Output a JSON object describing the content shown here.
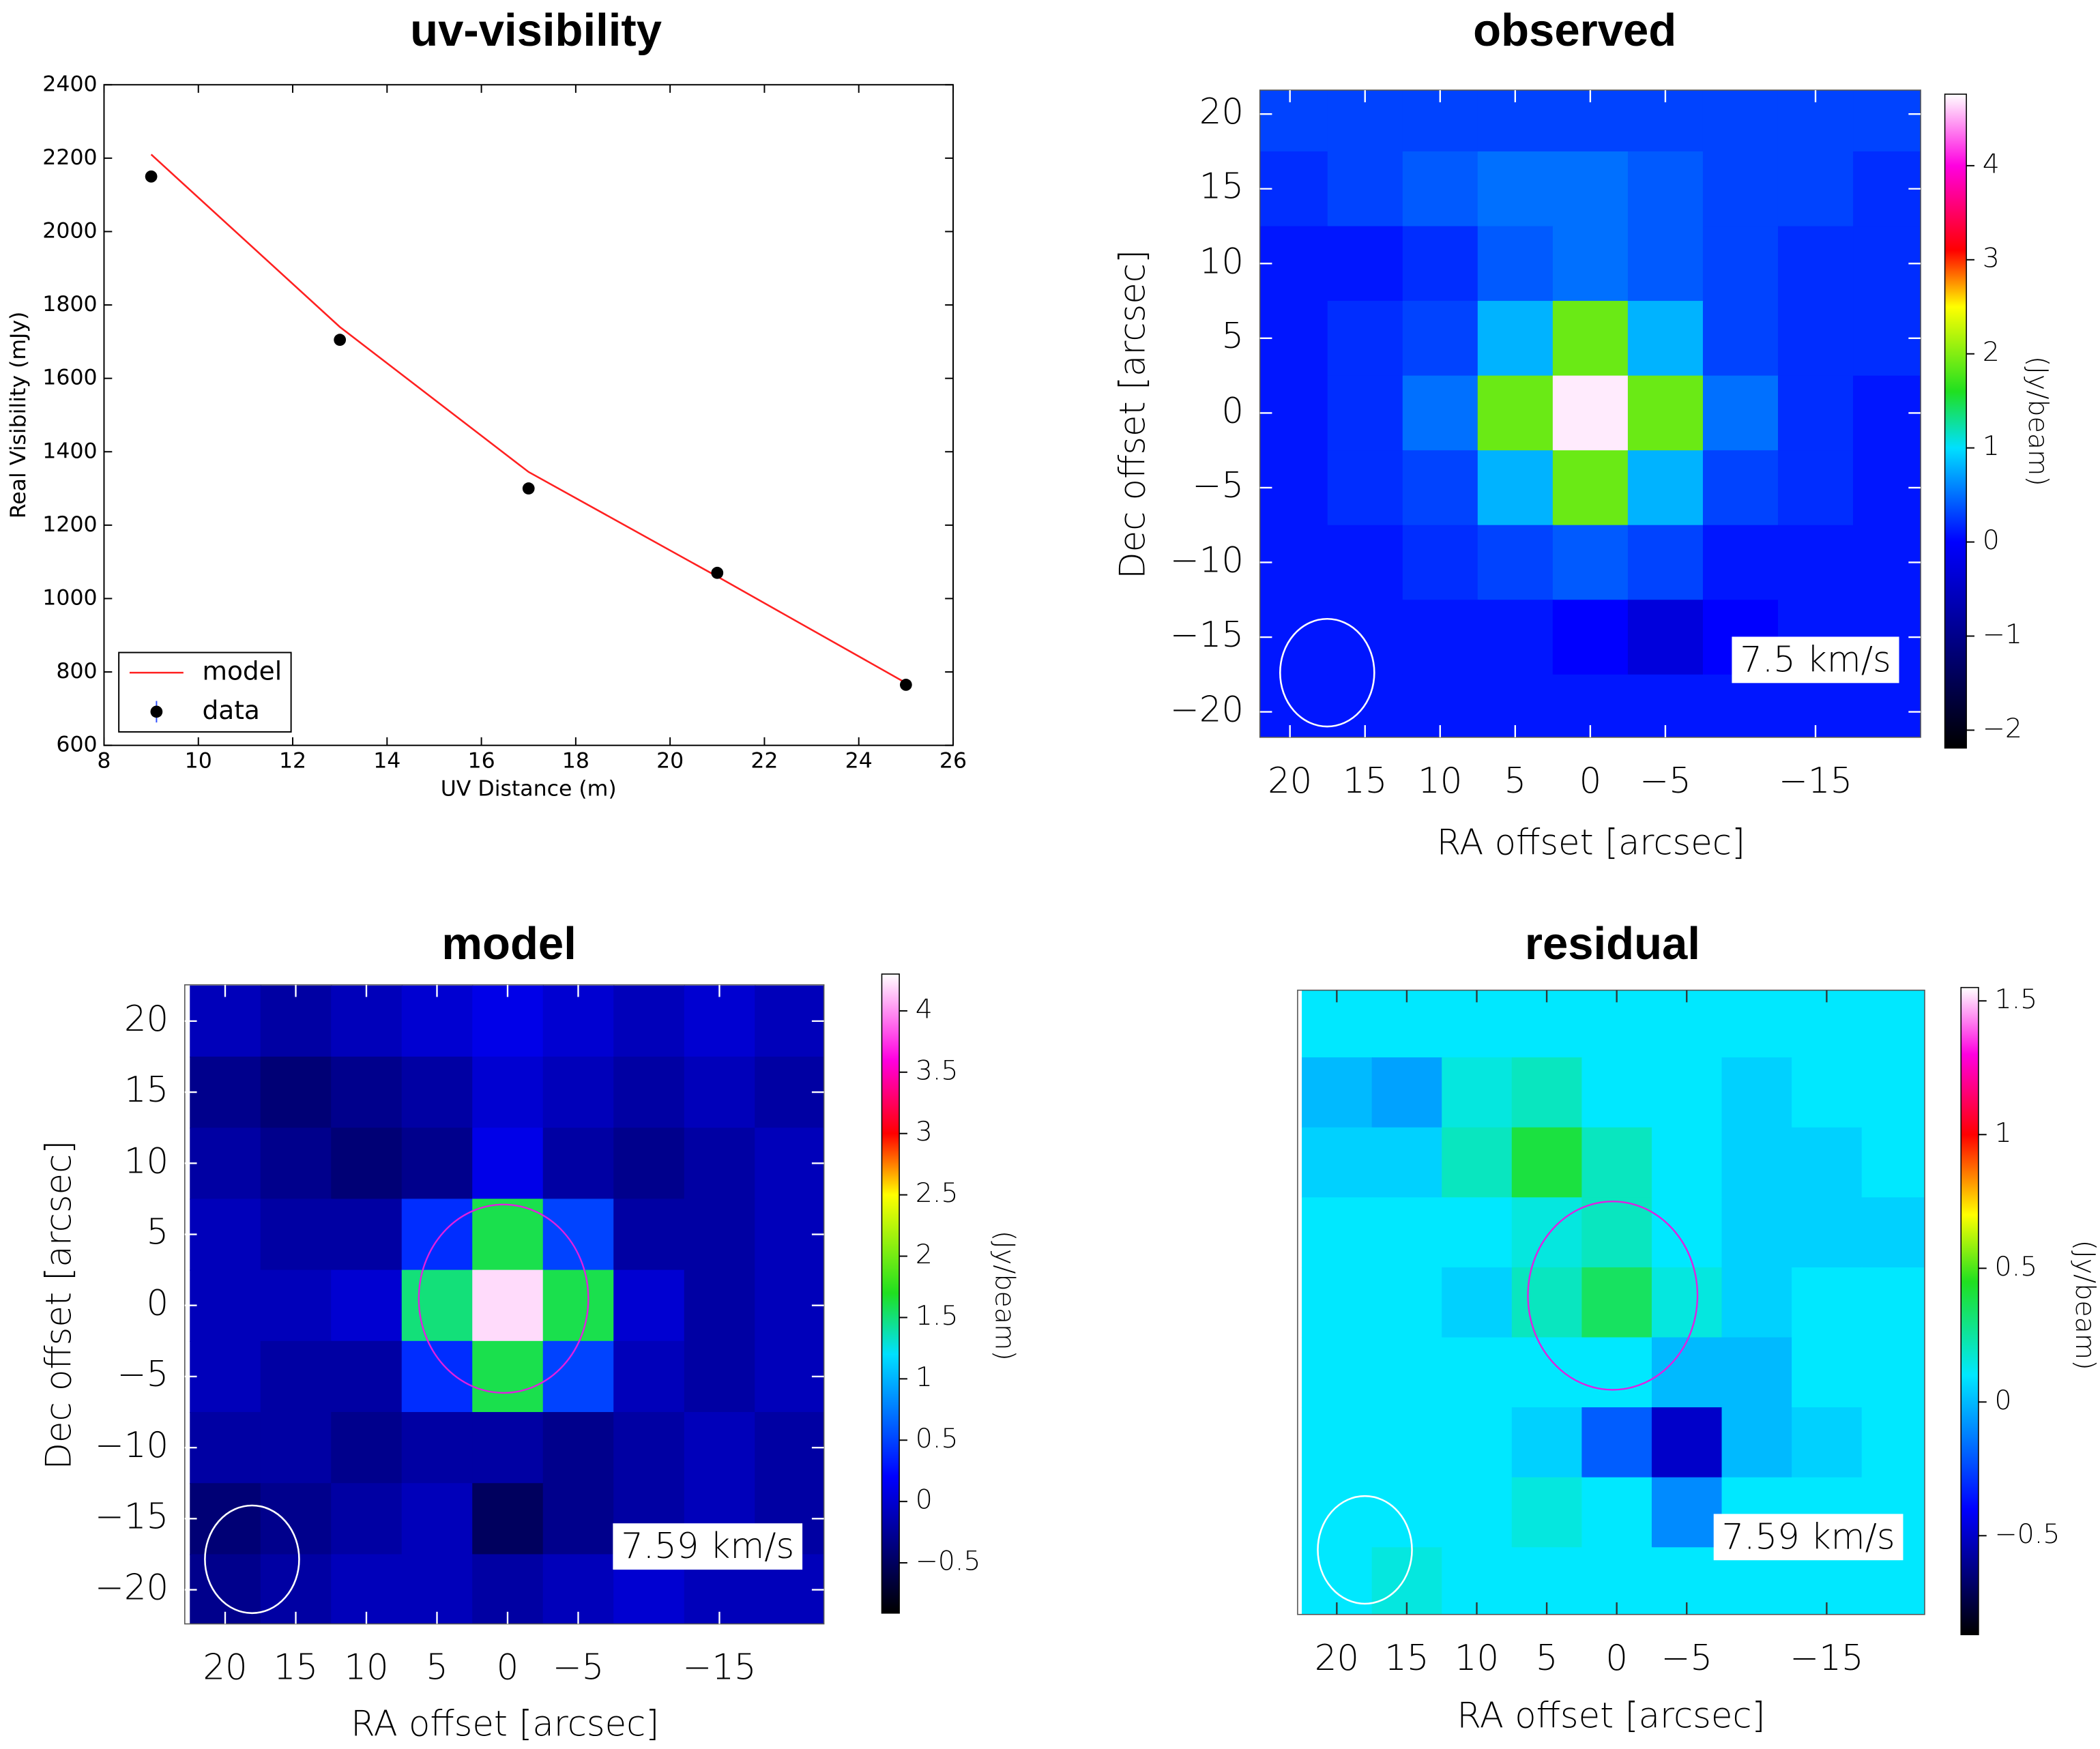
{
  "chart_data": [
    {
      "type": "line",
      "title": "uv-visibility",
      "xlabel": "UV Distance (m)",
      "ylabel": "Real Visibility (mJy)",
      "x": [
        9,
        13,
        17,
        21,
        25
      ],
      "series": [
        {
          "name": "model",
          "color": "#ff2020",
          "values": [
            2210,
            1740,
            1345,
            1060,
            770
          ]
        },
        {
          "name": "data",
          "color": "#000000",
          "error_color": "#3050ff",
          "values": [
            2150,
            1705,
            1300,
            1070,
            765
          ],
          "errors": [
            10,
            10,
            10,
            10,
            10
          ]
        }
      ],
      "xlim": [
        8,
        26
      ],
      "xticks": [
        8,
        10,
        12,
        14,
        16,
        18,
        20,
        22,
        24,
        26
      ],
      "ylim": [
        600,
        2400
      ],
      "yticks": [
        600,
        800,
        1000,
        1200,
        1400,
        1600,
        1800,
        2000,
        2200,
        2400
      ],
      "legend": "lower left"
    },
    {
      "type": "heatmap",
      "title": "observed",
      "xlabel": "RA offset [arcsec]",
      "ylabel": "Dec offset [arcsec]",
      "colorbar_label": "(Jy/beam)",
      "annotation": "7.5 km/s",
      "x": [
        20,
        15,
        10,
        5,
        0,
        -5,
        -10,
        -15,
        -20
      ],
      "y": [
        20,
        15,
        10,
        5,
        0,
        -5,
        -10,
        -15,
        -20
      ],
      "values": [
        [
          0.3,
          0.3,
          0.3,
          0.3,
          0.3,
          0.3,
          0.3,
          0.3,
          0.3
        ],
        [
          0.2,
          0.3,
          0.4,
          0.5,
          0.5,
          0.4,
          0.3,
          0.3,
          0.2
        ],
        [
          0.1,
          0.1,
          0.2,
          0.4,
          0.5,
          0.4,
          0.3,
          0.2,
          0.2
        ],
        [
          0.1,
          0.2,
          0.3,
          0.8,
          1.9,
          0.8,
          0.3,
          0.2,
          0.2
        ],
        [
          0.1,
          0.2,
          0.5,
          1.9,
          4.7,
          1.9,
          0.5,
          0.2,
          0.1
        ],
        [
          0.1,
          0.2,
          0.3,
          0.8,
          1.9,
          0.8,
          0.3,
          0.2,
          0.1
        ],
        [
          0.1,
          0.1,
          0.2,
          0.3,
          0.4,
          0.3,
          0.1,
          0.1,
          0.1
        ],
        [
          0.1,
          0.1,
          0.1,
          0.1,
          0,
          -0.3,
          0,
          0.1,
          0.1
        ],
        [
          0.1,
          0.1,
          0.1,
          0.1,
          0.1,
          0.1,
          0.1,
          0.1,
          0.1
        ]
      ],
      "xlim": [
        22,
        -22
      ],
      "ylim": [
        -21.7,
        21.6
      ],
      "xticks": [
        20,
        15,
        10,
        5,
        0,
        {
          "value": -5,
          "label": "−5"
        },
        {
          "value": -15,
          "label": "−15"
        }
      ],
      "yticks": [
        20,
        15,
        10,
        5,
        0,
        {
          "value": -5,
          "label": "−5"
        },
        {
          "value": -10,
          "label": "−10"
        },
        {
          "value": -15,
          "label": "−15"
        },
        {
          "value": -20,
          "label": "−20"
        }
      ],
      "clim": [
        -2.19,
        4.76
      ],
      "cticks": [
        4,
        3,
        2,
        1,
        0,
        {
          "value": -1,
          "label": "−1"
        },
        {
          "value": -2,
          "label": "−2"
        }
      ],
      "colormap": [
        {
          "value": -2.19,
          "color": "#000000"
        },
        {
          "value": 0,
          "color": "#0000ff"
        },
        {
          "value": 1,
          "color": "#00e0ff"
        },
        {
          "value": 1.6,
          "color": "#20e020"
        },
        {
          "value": 2.5,
          "color": "#ffff00"
        },
        {
          "value": 3.1,
          "color": "#ff0000"
        },
        {
          "value": 4,
          "color": "#ff00e0"
        },
        {
          "value": 4.76,
          "color": "#ffffff"
        }
      ]
    },
    {
      "type": "heatmap",
      "title": "model",
      "xlabel": "RA offset [arcsec]",
      "ylabel": "Dec offset [arcsec]",
      "colorbar_label": "(Jy/beam)",
      "annotation": "7.59 km/s",
      "x": [
        20,
        15,
        10,
        5,
        0,
        -5,
        -10,
        -15,
        -20
      ],
      "y": [
        20,
        15,
        10,
        5,
        0,
        -5,
        -10,
        -15,
        -20
      ],
      "values": [
        [
          -0.1,
          -0.2,
          -0.1,
          0,
          0.1,
          0,
          -0.1,
          0,
          -0.1
        ],
        [
          -0.3,
          -0.4,
          -0.3,
          -0.2,
          0,
          -0.1,
          -0.2,
          -0.1,
          -0.2
        ],
        [
          -0.2,
          -0.3,
          -0.4,
          -0.3,
          0.1,
          -0.2,
          -0.3,
          -0.2,
          -0.1
        ],
        [
          -0.1,
          -0.2,
          -0.2,
          0.4,
          1.6,
          0.5,
          -0.2,
          -0.2,
          -0.1
        ],
        [
          -0.1,
          -0.1,
          0,
          1.5,
          4.2,
          1.6,
          0,
          -0.2,
          -0.1
        ],
        [
          -0.1,
          -0.2,
          -0.2,
          0.4,
          1.6,
          0.5,
          -0.1,
          -0.2,
          -0.1
        ],
        [
          -0.2,
          -0.2,
          -0.3,
          -0.2,
          -0.2,
          -0.3,
          -0.2,
          -0.1,
          -0.2
        ],
        [
          -0.4,
          -0.3,
          -0.2,
          -0.1,
          -0.5,
          -0.3,
          -0.2,
          -0.1,
          -0.2
        ],
        [
          -0.3,
          -0.2,
          -0.1,
          -0.1,
          -0.2,
          -0.1,
          0,
          -0.1,
          -0.1
        ]
      ],
      "xlim": [
        22.86,
        -22.4
      ],
      "ylim": [
        -22.4,
        22.55
      ],
      "xticks": [
        20,
        15,
        10,
        5,
        0,
        {
          "value": -5,
          "label": "−5"
        },
        {
          "value": -15,
          "label": "−15"
        }
      ],
      "yticks": [
        20,
        15,
        10,
        5,
        0,
        {
          "value": -5,
          "label": "−5"
        },
        {
          "value": -10,
          "label": "−10"
        },
        {
          "value": -15,
          "label": "−15"
        },
        {
          "value": -20,
          "label": "−20"
        }
      ],
      "clim": [
        -0.91,
        4.3
      ],
      "cticks": [
        4,
        3.5,
        3,
        2.5,
        2,
        1.5,
        1,
        0.5,
        0,
        {
          "value": -0.5,
          "label": "−0.5"
        }
      ],
      "colormap": [
        {
          "value": -0.91,
          "color": "#000000"
        },
        {
          "value": 0.2,
          "color": "#0000ff"
        },
        {
          "value": 1.2,
          "color": "#00e0ff"
        },
        {
          "value": 1.7,
          "color": "#20e020"
        },
        {
          "value": 2.5,
          "color": "#ffff00"
        },
        {
          "value": 3,
          "color": "#ff0000"
        },
        {
          "value": 3.6,
          "color": "#ff00e0"
        },
        {
          "value": 4.3,
          "color": "#ffffff"
        }
      ]
    },
    {
      "type": "heatmap",
      "title": "residual",
      "xlabel": "RA offset [arcsec]",
      "colorbar_label": "(Jy/beam)",
      "annotation": "7.59 km/s",
      "x": [
        20,
        15,
        10,
        5,
        0,
        -5,
        -10,
        -15,
        -20
      ],
      "y": [
        20,
        15,
        10,
        5,
        0,
        -5,
        -10,
        -15,
        -20
      ],
      "values": [
        [
          0.1,
          0.1,
          0.1,
          0.1,
          0.1,
          0.1,
          0.1,
          0.1,
          0.1
        ],
        [
          0,
          -0.05,
          0.15,
          0.2,
          0.1,
          0.1,
          0.05,
          0.1,
          0.1
        ],
        [
          0.05,
          0.05,
          0.2,
          0.4,
          0.2,
          0.1,
          0.05,
          0.05,
          0.1
        ],
        [
          0.1,
          0.1,
          0.1,
          0.15,
          0.2,
          0.1,
          0.05,
          0.05,
          0.05
        ],
        [
          0.1,
          0.1,
          0.05,
          0.2,
          0.35,
          0.15,
          0.05,
          0.1,
          0.1
        ],
        [
          0.1,
          0.1,
          0.1,
          0.1,
          0.1,
          0,
          0,
          0.1,
          0.1
        ],
        [
          0.1,
          0.1,
          0.1,
          0.05,
          -0.2,
          -0.5,
          0,
          0.05,
          0.1
        ],
        [
          0.1,
          0.1,
          0.1,
          0.15,
          0.1,
          -0.1,
          0.1,
          0.1,
          0.1
        ],
        [
          0.1,
          0.15,
          0.1,
          0.1,
          0.1,
          0.1,
          0.1,
          0.1,
          0.1
        ]
      ],
      "xlim": [
        22.8,
        -22
      ],
      "ylim": [
        -22.3,
        22.3
      ],
      "xticks": [
        20,
        15,
        10,
        5,
        0,
        {
          "value": -5,
          "label": "−5"
        },
        {
          "value": -15,
          "label": "−15"
        }
      ],
      "clim": [
        -0.87,
        1.55
      ],
      "cticks": [
        1.5,
        1,
        0.5,
        0,
        {
          "value": -0.5,
          "label": "−0.5"
        }
      ],
      "colormap": [
        {
          "value": -0.87,
          "color": "#000000"
        },
        {
          "value": -0.4,
          "color": "#0000ff"
        },
        {
          "value": 0.1,
          "color": "#00e8ff"
        },
        {
          "value": 0.45,
          "color": "#20e020"
        },
        {
          "value": 0.7,
          "color": "#ffff00"
        },
        {
          "value": 1,
          "color": "#ff0000"
        },
        {
          "value": 1.3,
          "color": "#ff00e0"
        },
        {
          "value": 1.55,
          "color": "#ffffff"
        }
      ]
    }
  ]
}
